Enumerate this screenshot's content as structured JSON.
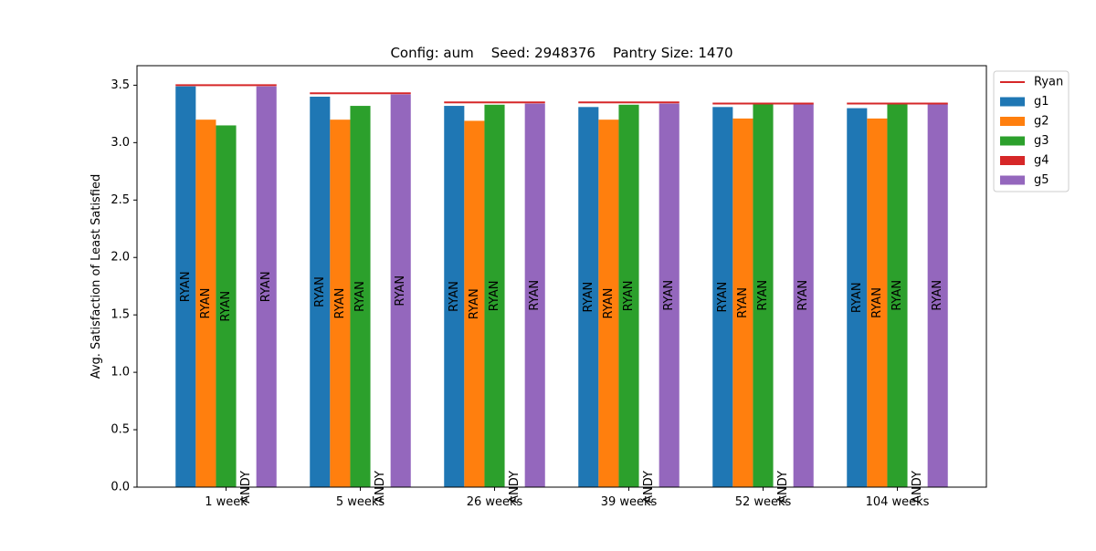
{
  "chart_data": {
    "type": "bar",
    "title": "Config: aum    Seed: 2948376    Pantry Size: 1470",
    "xlabel": "",
    "ylabel": "Avg. Satisfaction of Least Satisfied",
    "ylim": [
      0,
      3.67
    ],
    "yticks": [
      "0.0",
      "0.5",
      "1.0",
      "1.5",
      "2.0",
      "2.5",
      "3.0",
      "3.5"
    ],
    "categories": [
      "1 week",
      "5 weeks",
      "26 weeks",
      "39 weeks",
      "52 weeks",
      "104 weeks"
    ],
    "series": [
      {
        "name": "g1",
        "color": "#1f77b4",
        "values": [
          3.49,
          3.4,
          3.32,
          3.31,
          3.31,
          3.3
        ],
        "bar_labels": [
          "RYAN",
          "RYAN",
          "RYAN",
          "RYAN",
          "RYAN",
          "RYAN"
        ]
      },
      {
        "name": "g2",
        "color": "#ff7f0e",
        "values": [
          3.2,
          3.2,
          3.19,
          3.2,
          3.21,
          3.21
        ],
        "bar_labels": [
          "RYAN",
          "RYAN",
          "RYAN",
          "RYAN",
          "RYAN",
          "RYAN"
        ]
      },
      {
        "name": "g3",
        "color": "#2ca02c",
        "values": [
          3.15,
          3.32,
          3.33,
          3.33,
          3.34,
          3.34
        ],
        "bar_labels": [
          "RYAN",
          "RYAN",
          "RYAN",
          "RYAN",
          "RYAN",
          "RYAN"
        ]
      },
      {
        "name": "g4",
        "color": "#d62728",
        "values": [
          0,
          0,
          0,
          0,
          0,
          0
        ],
        "bar_labels": [
          "ANDY",
          "ANDY",
          "ANDY",
          "ANDY",
          "ANDY",
          "ANDY"
        ]
      },
      {
        "name": "g5",
        "color": "#9467bd",
        "values": [
          3.49,
          3.42,
          3.34,
          3.34,
          3.34,
          3.34
        ],
        "bar_labels": [
          "RYAN",
          "RYAN",
          "RYAN",
          "RYAN",
          "RYAN",
          "RYAN"
        ]
      }
    ],
    "reference_line": {
      "name": "Ryan",
      "color": "#d62728",
      "values": [
        3.5,
        3.43,
        3.35,
        3.35,
        3.34,
        3.34
      ]
    },
    "legend": {
      "placement": "outside-top-right",
      "entries": [
        "Ryan",
        "g1",
        "g2",
        "g3",
        "g4",
        "g5"
      ]
    },
    "grid": false
  }
}
